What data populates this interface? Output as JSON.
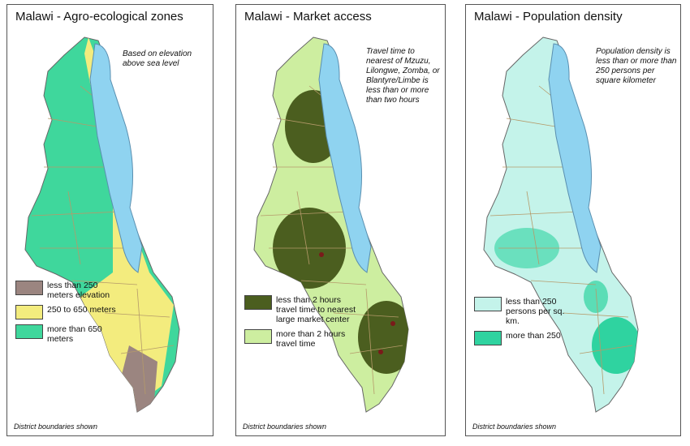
{
  "panels": [
    {
      "title": "Malawi - Agro-ecological zones",
      "note": "Based on elevation above sea level",
      "legend": [
        {
          "label": "less than 250 meters elevation",
          "color": "#9b8580"
        },
        {
          "label": "250 to 650 meters",
          "color": "#f3ec7e"
        },
        {
          "label": "more than 650 meters",
          "color": "#3fd79c"
        }
      ],
      "footer": "District boundaries shown"
    },
    {
      "title": "Malawi - Market access",
      "note": "Travel time to nearest of Mzuzu, Lilongwe, Zomba, or Blantyre/Limbe is less than or more than two hours",
      "legend": [
        {
          "label": "less than 2 hours travel time to nearest large market center",
          "color": "#4b5e1f"
        },
        {
          "label": "more than 2 hours travel time",
          "color": "#cdeea0"
        }
      ],
      "footer": "District boundaries shown"
    },
    {
      "title": "Malawi - Population density",
      "note": "Population density is less than or more than 250 persons per square kilometer",
      "legend": [
        {
          "label": "less than 250 persons per sq. km.",
          "color": "#c4f3ea"
        },
        {
          "label": "more than 250",
          "color": "#2fd3a0"
        }
      ],
      "footer": "District boundaries shown"
    }
  ]
}
